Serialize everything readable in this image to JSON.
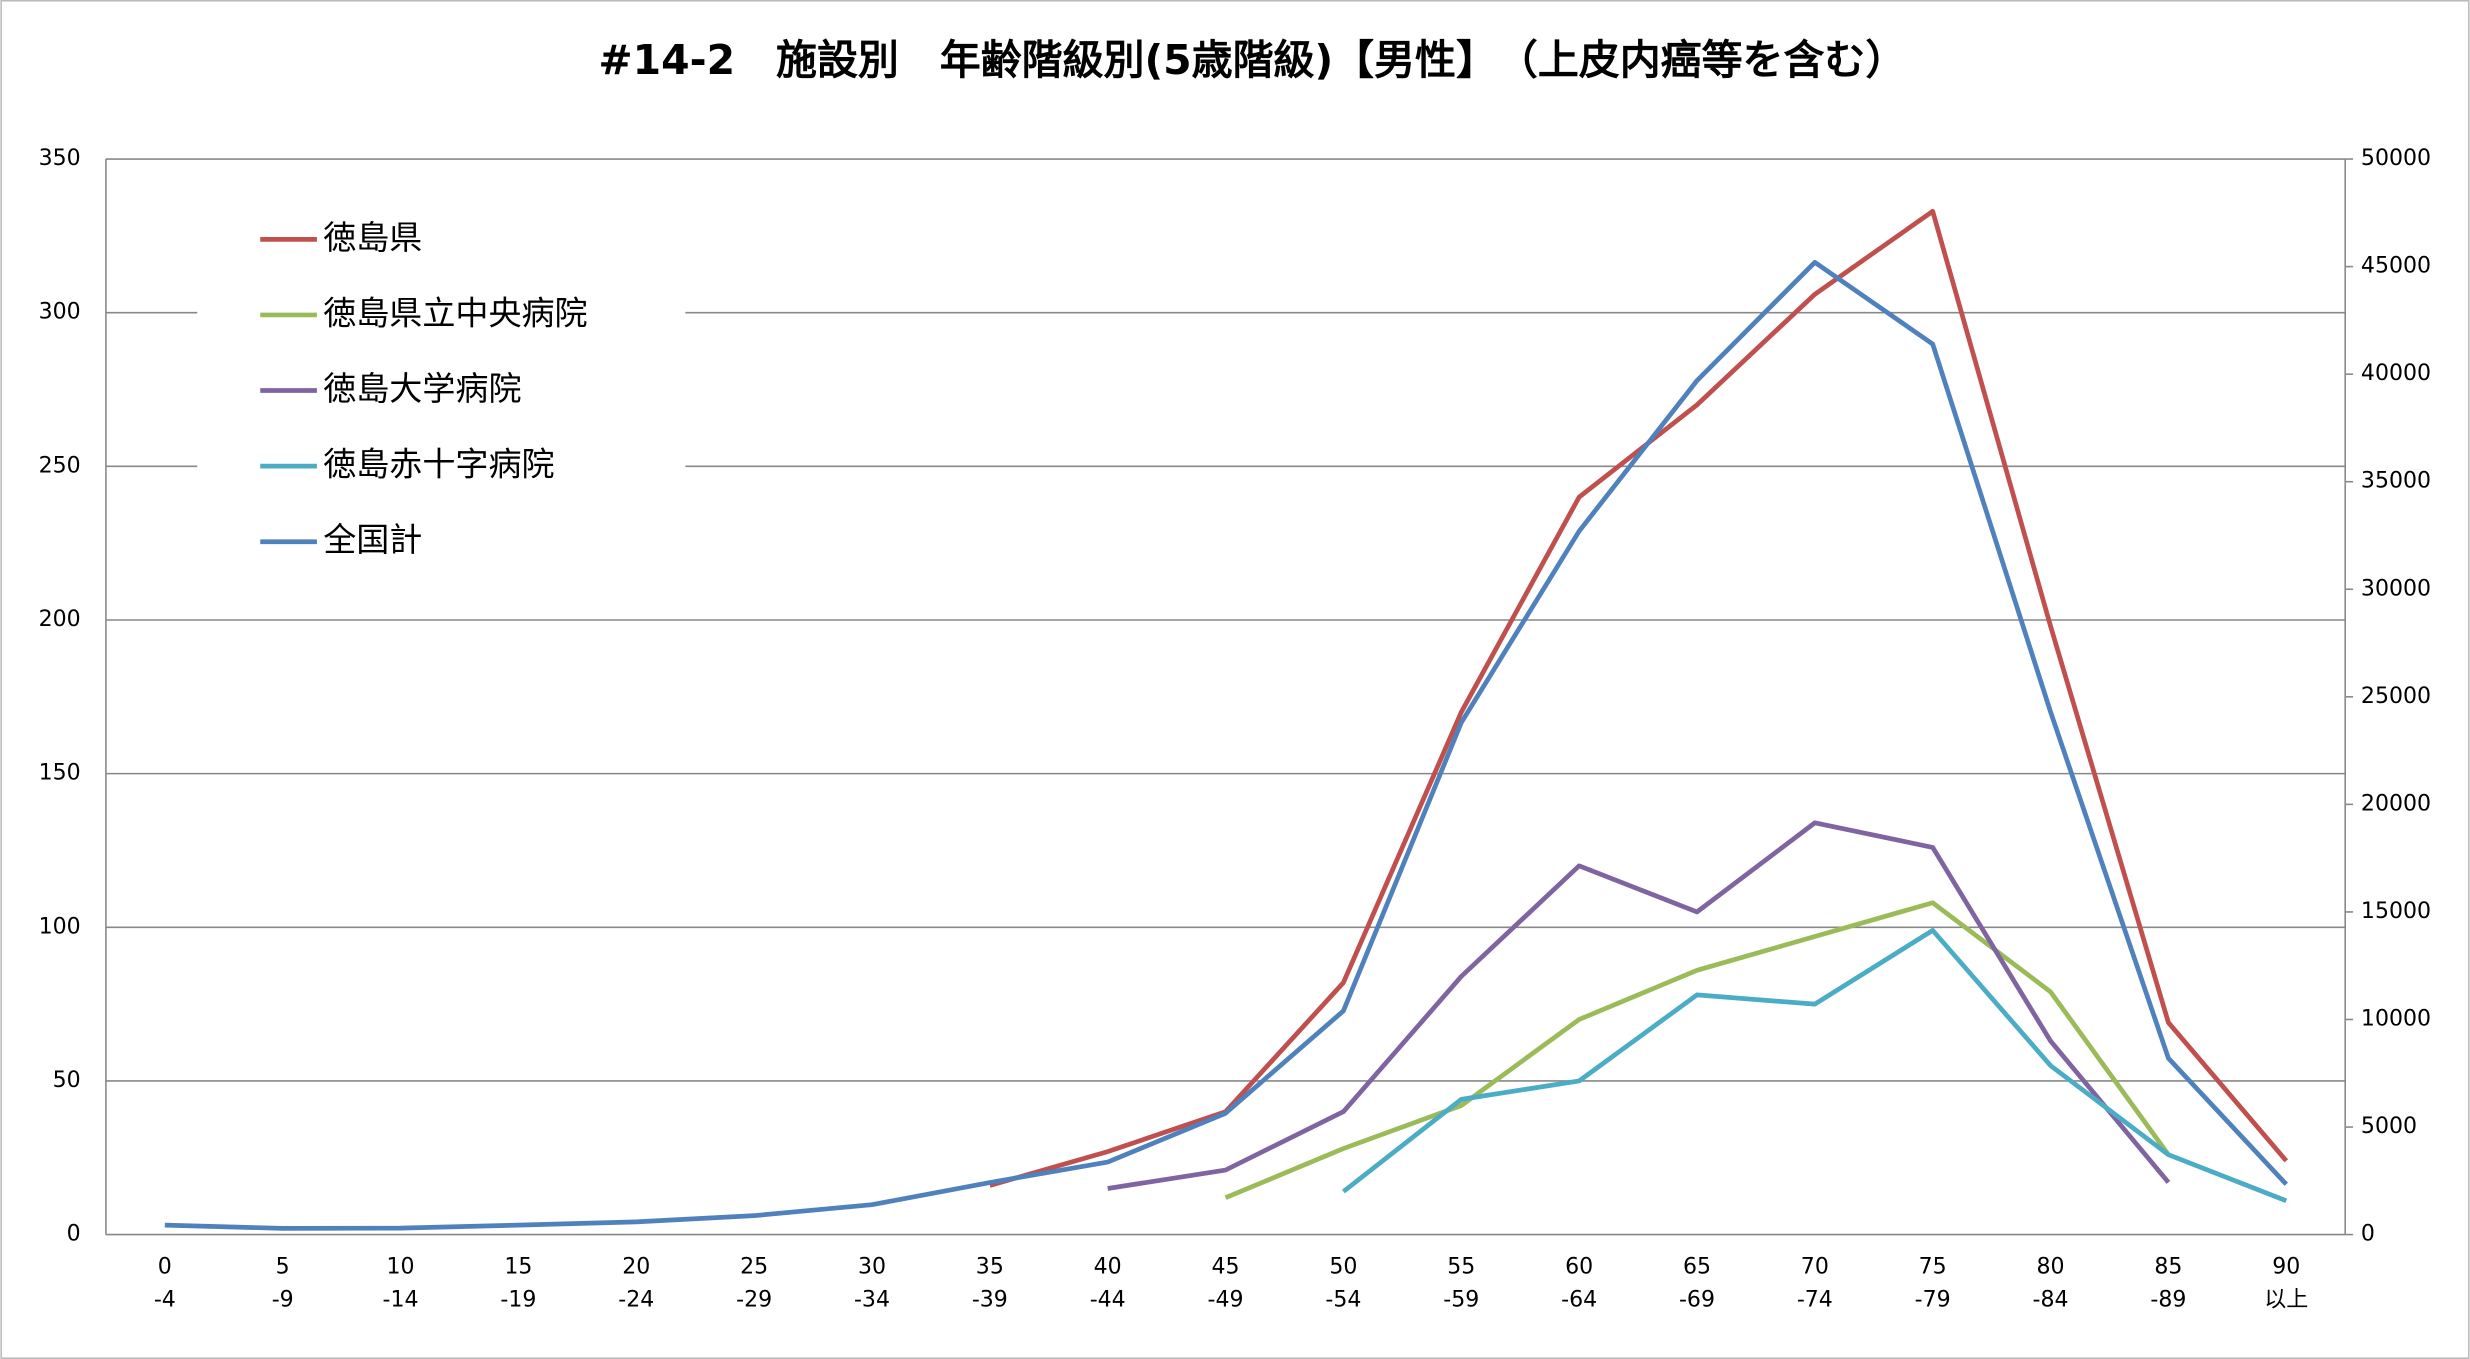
{
  "chart_data": {
    "type": "line",
    "title": "#14-2　施設別　年齢階級別(5歳階級)【男性】　（上皮内癌等を含む）",
    "categories": [
      [
        "0",
        "-4"
      ],
      [
        "5",
        "-9"
      ],
      [
        "10",
        "-14"
      ],
      [
        "15",
        "-19"
      ],
      [
        "20",
        "-24"
      ],
      [
        "25",
        "-29"
      ],
      [
        "30",
        "-34"
      ],
      [
        "35",
        "-39"
      ],
      [
        "40",
        "-44"
      ],
      [
        "45",
        "-49"
      ],
      [
        "50",
        "-54"
      ],
      [
        "55",
        "-59"
      ],
      [
        "60",
        "-64"
      ],
      [
        "65",
        "-69"
      ],
      [
        "70",
        "-74"
      ],
      [
        "75",
        "-79"
      ],
      [
        "80",
        "-84"
      ],
      [
        "85",
        "-89"
      ],
      [
        "90",
        "以上"
      ]
    ],
    "series": [
      {
        "name": "徳島県",
        "color": "#c0504d",
        "values": [
          null,
          null,
          null,
          null,
          null,
          null,
          null,
          16,
          27,
          40,
          82,
          170,
          240,
          270,
          306,
          333,
          198,
          69,
          24
        ]
      },
      {
        "name": "徳島県立中央病院",
        "color": "#9bbb59",
        "values": [
          null,
          null,
          null,
          null,
          null,
          null,
          null,
          null,
          null,
          12,
          28,
          42,
          70,
          86,
          97,
          108,
          79,
          26,
          null
        ]
      },
      {
        "name": "徳島大学病院",
        "color": "#8064a2",
        "values": [
          null,
          null,
          null,
          null,
          null,
          null,
          null,
          null,
          15,
          21,
          40,
          84,
          120,
          105,
          134,
          126,
          63,
          17,
          null
        ]
      },
      {
        "name": "徳島赤十字病院",
        "color": "#4bacc6",
        "values": [
          null,
          null,
          null,
          null,
          null,
          null,
          null,
          null,
          null,
          null,
          14,
          44,
          50,
          78,
          75,
          99,
          55,
          26,
          11
        ]
      },
      {
        "name": "全国計",
        "color": "#4f81bd",
        "axis": "y2",
        "values": [
          440,
          290,
          300,
          440,
          590,
          880,
          1390,
          2420,
          3370,
          5640,
          10400,
          23800,
          32700,
          39700,
          45200,
          41400,
          24300,
          8200,
          2340
        ]
      }
    ],
    "ylim": [
      0,
      350
    ],
    "yticks": [
      0,
      50,
      100,
      150,
      200,
      250,
      300,
      350
    ],
    "y2lim": [
      0,
      50000
    ],
    "y2ticks": [
      0,
      5000,
      10000,
      15000,
      20000,
      25000,
      30000,
      35000,
      40000,
      45000,
      50000
    ],
    "grid": true,
    "legend": "upper-left"
  }
}
